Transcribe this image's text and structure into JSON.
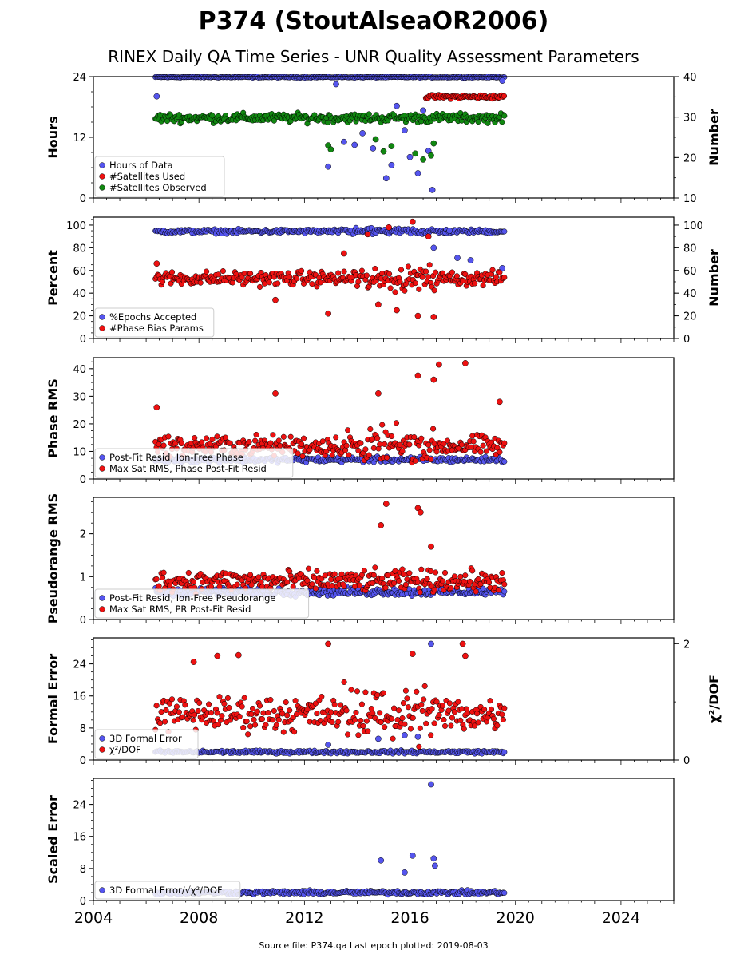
{
  "figure": {
    "title": "P374 (StoutAlseaOR2006)",
    "subtitle": "RINEX Daily QA Time Series - UNR Quality Assessment Parameters",
    "footer": "Source file: P374.qa Last epoch plotted: 2019-08-03"
  },
  "chart_data": [
    {
      "type": "scatter",
      "id": "hours",
      "ylabel": "Hours",
      "ylabel_right": "Number",
      "ylim": [
        0,
        24
      ],
      "yticks": [
        0,
        12,
        24
      ],
      "ylim_right": [
        10,
        40
      ],
      "yticks_right": [
        10,
        20,
        30,
        40
      ],
      "xlim": [
        2004,
        2026
      ],
      "legend_position": "lower-left",
      "series": [
        {
          "name": "Hours of Data",
          "color": "#5555ee",
          "axis": "left",
          "start": 2006.35,
          "end": 2019.6,
          "base": 23.9,
          "noise": 0.1,
          "outliers": [
            {
              "x": 2006.4,
              "y": 20.1
            },
            {
              "x": 2012.9,
              "y": 6.2
            },
            {
              "x": 2013.2,
              "y": 22.5
            },
            {
              "x": 2013.5,
              "y": 11.1
            },
            {
              "x": 2013.9,
              "y": 10.5
            },
            {
              "x": 2014.2,
              "y": 12.8
            },
            {
              "x": 2014.6,
              "y": 9.8
            },
            {
              "x": 2014.9,
              "y": 15.5
            },
            {
              "x": 2015.1,
              "y": 3.9
            },
            {
              "x": 2015.3,
              "y": 6.5
            },
            {
              "x": 2015.5,
              "y": 18.2
            },
            {
              "x": 2015.8,
              "y": 13.4
            },
            {
              "x": 2016.0,
              "y": 8.1
            },
            {
              "x": 2016.3,
              "y": 4.9
            },
            {
              "x": 2016.5,
              "y": 17.3
            },
            {
              "x": 2016.7,
              "y": 9.3
            },
            {
              "x": 2016.85,
              "y": 1.6
            },
            {
              "x": 2019.5,
              "y": 23.2
            }
          ]
        },
        {
          "name": "#Satellites Used",
          "color": "#ee1111",
          "axis": "right",
          "start": 2016.6,
          "end": 2019.6,
          "base": 35.0,
          "noise": 0.4,
          "outliers": []
        },
        {
          "name": "#Satellites Observed",
          "color": "#118811",
          "axis": "right",
          "start": 2006.35,
          "end": 2019.6,
          "base": 29.8,
          "noise": 0.9,
          "outliers": [
            {
              "x": 2012.9,
              "y": 23.0
            },
            {
              "x": 2013.0,
              "y": 22.0
            },
            {
              "x": 2014.7,
              "y": 24.5
            },
            {
              "x": 2015.0,
              "y": 21.5
            },
            {
              "x": 2015.3,
              "y": 22.8
            },
            {
              "x": 2016.2,
              "y": 21.0
            },
            {
              "x": 2016.5,
              "y": 19.5
            },
            {
              "x": 2016.8,
              "y": 20.5
            },
            {
              "x": 2016.9,
              "y": 23.5
            }
          ]
        }
      ]
    },
    {
      "type": "scatter",
      "id": "percent",
      "ylabel": "Percent",
      "ylabel_right": "Number",
      "ylim": [
        0,
        107
      ],
      "yticks": [
        0,
        20,
        40,
        60,
        80,
        100
      ],
      "ylim_right": [
        0,
        107
      ],
      "yticks_right": [
        0,
        20,
        40,
        60,
        80,
        100
      ],
      "xlim": [
        2004,
        2026
      ],
      "legend_position": "lower-left",
      "series": [
        {
          "name": "%Epochs Accepted",
          "color": "#5555ee",
          "axis": "left",
          "start": 2006.35,
          "end": 2019.6,
          "base": 94.5,
          "noise": 1.5,
          "outliers": [
            {
              "x": 2016.9,
              "y": 80
            },
            {
              "x": 2017.5,
              "y": 95
            },
            {
              "x": 2017.8,
              "y": 71
            },
            {
              "x": 2018.3,
              "y": 69
            },
            {
              "x": 2019.5,
              "y": 62
            }
          ]
        },
        {
          "name": "#Phase Bias Params",
          "color": "#ee1111",
          "axis": "right",
          "start": 2006.35,
          "end": 2019.6,
          "base": 53,
          "noise": 5,
          "outliers": [
            {
              "x": 2006.4,
              "y": 66
            },
            {
              "x": 2010.9,
              "y": 34
            },
            {
              "x": 2012.9,
              "y": 22
            },
            {
              "x": 2013.5,
              "y": 75
            },
            {
              "x": 2014.4,
              "y": 92
            },
            {
              "x": 2014.8,
              "y": 30
            },
            {
              "x": 2015.2,
              "y": 98
            },
            {
              "x": 2015.5,
              "y": 25
            },
            {
              "x": 2016.1,
              "y": 103
            },
            {
              "x": 2016.3,
              "y": 20
            },
            {
              "x": 2016.7,
              "y": 90
            },
            {
              "x": 2016.9,
              "y": 19
            }
          ]
        }
      ]
    },
    {
      "type": "scatter",
      "id": "phase-rms",
      "ylabel": "Phase RMS",
      "ylim": [
        0,
        44
      ],
      "yticks": [
        0,
        10,
        20,
        30,
        40
      ],
      "xlim": [
        2004,
        2026
      ],
      "legend_position": "lower-left",
      "series": [
        {
          "name": "Post-Fit Resid, Ion-Free Phase",
          "color": "#5555ee",
          "axis": "left",
          "start": 2006.35,
          "end": 2019.6,
          "base": 7,
          "noise": 0.8,
          "outliers": []
        },
        {
          "name": "Max Sat RMS, Phase Post-Fit Resid",
          "color": "#ee1111",
          "axis": "left",
          "start": 2006.35,
          "end": 2019.6,
          "base": 12,
          "noise": 3,
          "outliers": [
            {
              "x": 2006.4,
              "y": 26
            },
            {
              "x": 2010.9,
              "y": 31
            },
            {
              "x": 2014.8,
              "y": 31
            },
            {
              "x": 2016.3,
              "y": 37.5
            },
            {
              "x": 2016.9,
              "y": 36
            },
            {
              "x": 2017.1,
              "y": 41.5
            },
            {
              "x": 2018.1,
              "y": 42
            },
            {
              "x": 2019.4,
              "y": 28
            }
          ]
        }
      ]
    },
    {
      "type": "scatter",
      "id": "pseudorange-rms",
      "ylabel": "Pseudorange RMS",
      "ylim": [
        0,
        2.85
      ],
      "yticks": [
        0,
        1,
        2
      ],
      "xlim": [
        2004,
        2026
      ],
      "legend_position": "lower-left",
      "series": [
        {
          "name": "Post-Fit Resid, Ion-Free Pseudorange",
          "color": "#5555ee",
          "axis": "left",
          "start": 2006.35,
          "end": 2019.6,
          "base": 0.65,
          "noise": 0.08,
          "outliers": []
        },
        {
          "name": "Max Sat RMS, PR Post-Fit Resid",
          "color": "#ee1111",
          "axis": "left",
          "start": 2006.35,
          "end": 2019.6,
          "base": 0.9,
          "noise": 0.2,
          "outliers": [
            {
              "x": 2015.1,
              "y": 2.7
            },
            {
              "x": 2014.9,
              "y": 2.2
            },
            {
              "x": 2016.3,
              "y": 2.6
            },
            {
              "x": 2016.4,
              "y": 2.5
            },
            {
              "x": 2016.8,
              "y": 1.7
            }
          ]
        }
      ]
    },
    {
      "type": "scatter",
      "id": "formal-error",
      "ylabel": "Formal Error",
      "ylabel_right": "χ²/DOF",
      "ylim": [
        0,
        30.5
      ],
      "yticks": [
        0,
        8,
        16,
        24
      ],
      "ylim_right": [
        0,
        2.1
      ],
      "yticks_right": [
        0,
        2
      ],
      "xlim": [
        2004,
        2026
      ],
      "legend_position": "lower-left",
      "series": [
        {
          "name": "3D Formal Error",
          "color": "#5555ee",
          "axis": "left",
          "start": 2006.35,
          "end": 2019.6,
          "base": 2.0,
          "noise": 0.3,
          "outliers": [
            {
              "x": 2012.9,
              "y": 3.8
            },
            {
              "x": 2014.8,
              "y": 5.3
            },
            {
              "x": 2015.8,
              "y": 6.2
            },
            {
              "x": 2016.3,
              "y": 5.8
            },
            {
              "x": 2016.8,
              "y": 29
            }
          ]
        },
        {
          "name": "χ²/DOF",
          "color": "#ee1111",
          "axis": "left",
          "start": 2006.35,
          "end": 2019.6,
          "base": 11.5,
          "noise": 3.5,
          "outliers": [
            {
              "x": 2007.8,
              "y": 24.5
            },
            {
              "x": 2008.7,
              "y": 26
            },
            {
              "x": 2009.5,
              "y": 26.2
            },
            {
              "x": 2012.9,
              "y": 29
            },
            {
              "x": 2016.1,
              "y": 26.5
            },
            {
              "x": 2018.0,
              "y": 29
            },
            {
              "x": 2018.1,
              "y": 26
            }
          ]
        }
      ]
    },
    {
      "type": "scatter",
      "id": "scaled-error",
      "ylabel": "Scaled Error",
      "ylim": [
        0,
        30.5
      ],
      "yticks": [
        0,
        8,
        16,
        24
      ],
      "xlim": [
        2004,
        2026
      ],
      "xticks": [
        2004,
        2008,
        2012,
        2016,
        2020,
        2024
      ],
      "legend_position": "lower-left",
      "series": [
        {
          "name": "3D Formal Error/√χ²/DOF",
          "color": "#5555ee",
          "axis": "left",
          "start": 2006.35,
          "end": 2019.6,
          "base": 2.0,
          "noise": 0.4,
          "outliers": [
            {
              "x": 2014.9,
              "y": 10
            },
            {
              "x": 2016.1,
              "y": 11.2
            },
            {
              "x": 2016.8,
              "y": 29
            },
            {
              "x": 2016.9,
              "y": 10.5
            },
            {
              "x": 2016.95,
              "y": 8.7
            },
            {
              "x": 2015.8,
              "y": 7
            }
          ]
        }
      ]
    }
  ]
}
